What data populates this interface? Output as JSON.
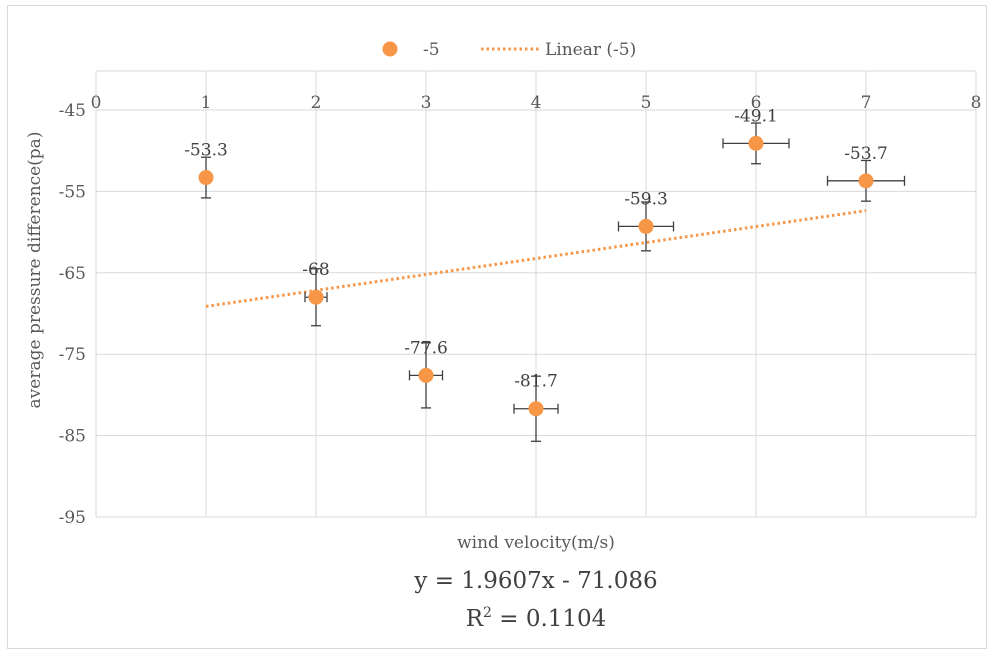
{
  "chart_data": {
    "type": "scatter",
    "title": "",
    "xlabel": "wind velocity(m/s)",
    "ylabel": "average pressure difference(pa)",
    "xlim": [
      0,
      8
    ],
    "ylim": [
      -95,
      -45
    ],
    "x_ticks": [
      "0",
      "1",
      "2",
      "3",
      "4",
      "5",
      "6",
      "7",
      "8"
    ],
    "y_ticks": [
      "-45",
      "-55",
      "-65",
      "-75",
      "-85",
      "-95"
    ],
    "grid": true,
    "legend_position": "top",
    "series": [
      {
        "name": "-5",
        "color": "#f79646",
        "x": [
          1,
          2,
          3,
          4,
          5,
          6,
          7
        ],
        "y": [
          -53.3,
          -68,
          -77.6,
          -81.7,
          -59.3,
          -49.1,
          -53.7
        ],
        "data_labels": [
          "-53.3",
          "-68",
          "-77.6",
          "-81.7",
          "-59.3",
          "-49.1",
          "-53.7"
        ],
        "x_error": [
          0,
          0.1,
          0.15,
          0.2,
          0.25,
          0.3,
          0.35
        ],
        "y_error": [
          2.5,
          3.5,
          4.0,
          4.0,
          3.0,
          2.5,
          2.5
        ]
      }
    ],
    "trendline": {
      "name": "Linear (-5)",
      "type": "linear",
      "color": "#f79646",
      "x_range": [
        1,
        7
      ],
      "slope": 1.9607,
      "intercept": -71.086,
      "equation": "y = 1.9607x - 71.086",
      "r2_label": "R",
      "r2_sup": "2",
      "r2_value": " = 0.1104"
    }
  }
}
